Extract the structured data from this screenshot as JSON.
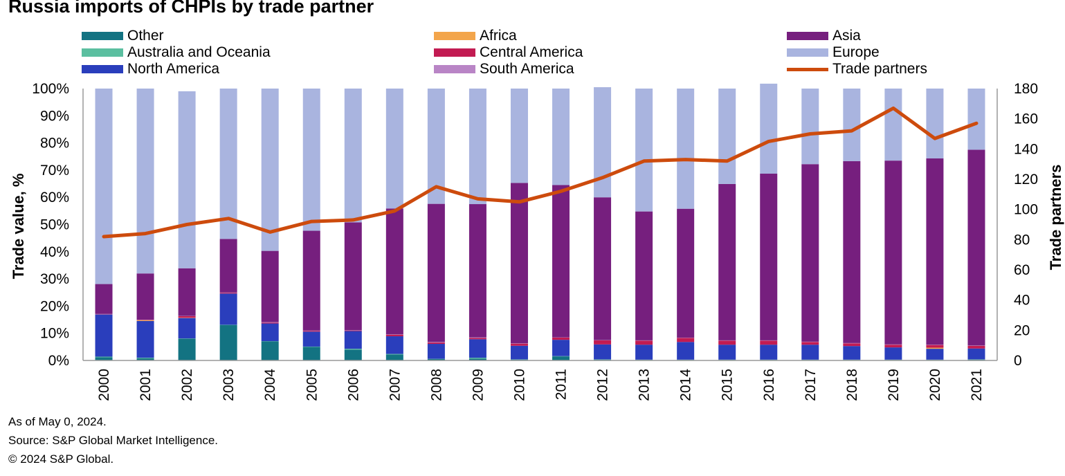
{
  "chart_data": {
    "type": "bar",
    "stacked": true,
    "title": "Russia imports of CHPIs by trade partner",
    "ylabel": "Trade value, %",
    "y2label": "Trade partners",
    "ylim": [
      0,
      100
    ],
    "y2lim": [
      0,
      180
    ],
    "yticks": [
      "0%",
      "10%",
      "20%",
      "30%",
      "40%",
      "50%",
      "60%",
      "70%",
      "80%",
      "90%",
      "100%"
    ],
    "y2ticks": [
      "0",
      "20",
      "40",
      "60",
      "80",
      "100",
      "120",
      "140",
      "160",
      "180"
    ],
    "categories": [
      "2000",
      "2001",
      "2002",
      "2003",
      "2004",
      "2005",
      "2006",
      "2007",
      "2008",
      "2009",
      "2010",
      "2011",
      "2012",
      "2013",
      "2014",
      "2015",
      "2016",
      "2017",
      "2018",
      "2019",
      "2020",
      "2021"
    ],
    "series": [
      {
        "name": "Other",
        "color": "#137382",
        "values": [
          1.2,
          0.8,
          8.0,
          13.0,
          7.0,
          5.0,
          4.0,
          2.2,
          0.5,
          0.7,
          0.3,
          1.5,
          0.3,
          0.2,
          0.2,
          0.2,
          0.2,
          0.2,
          0.2,
          0.2,
          0.2,
          0.3
        ]
      },
      {
        "name": "Australia and Oceania",
        "color": "#5bbfa0",
        "values": [
          0.2,
          0.2,
          0.1,
          0.1,
          0.1,
          0.1,
          0.3,
          0.2,
          0.1,
          0.3,
          0.1,
          0.1,
          0.1,
          0.1,
          0.1,
          0.1,
          0.1,
          0.1,
          0.1,
          0.1,
          0.1,
          0.1
        ]
      },
      {
        "name": "North America",
        "color": "#2a3ebc",
        "values": [
          15.5,
          13.5,
          7.5,
          11.5,
          6.5,
          5.5,
          6.5,
          6.5,
          5.5,
          6.8,
          5.0,
          6.0,
          5.5,
          5.5,
          6.5,
          5.5,
          5.5,
          5.5,
          5.0,
          4.5,
          4.0,
          4.0
        ]
      },
      {
        "name": "Africa",
        "color": "#f3a54b",
        "values": [
          0.0,
          0.3,
          0.1,
          0.0,
          0.0,
          0.0,
          0.0,
          0.0,
          0.0,
          0.0,
          0.0,
          0.0,
          0.0,
          0.0,
          0.0,
          0.0,
          0.0,
          0.0,
          0.0,
          0.0,
          0.4,
          0.0
        ]
      },
      {
        "name": "Central America",
        "color": "#c21b52",
        "values": [
          0.1,
          0.1,
          0.6,
          0.3,
          0.3,
          0.3,
          0.2,
          0.6,
          0.5,
          0.5,
          0.8,
          0.8,
          1.5,
          1.5,
          1.5,
          1.5,
          1.5,
          1.0,
          1.0,
          1.0,
          1.0,
          1.0
        ]
      },
      {
        "name": "South America",
        "color": "#b985c6",
        "values": [
          0.1,
          0.1,
          0.1,
          0.1,
          0.2,
          0.1,
          0.1,
          0.1,
          0.2,
          0.2,
          0.1,
          0.1,
          0.1,
          0.1,
          0.1,
          0.1,
          0.1,
          0.1,
          0.1,
          0.1,
          0.1,
          0.1
        ]
      },
      {
        "name": "Asia",
        "color": "#761f7e",
        "values": [
          11.0,
          17.0,
          17.5,
          19.7,
          26.2,
          36.7,
          39.7,
          46.3,
          50.8,
          49.0,
          59.0,
          56.0,
          52.5,
          47.4,
          47.4,
          57.5,
          61.3,
          65.3,
          66.9,
          67.6,
          68.5,
          72.0
        ]
      },
      {
        "name": "Europe",
        "color": "#a9b4df",
        "values": [
          71.9,
          68.0,
          65.1,
          55.3,
          59.7,
          52.3,
          49.2,
          44.1,
          42.4,
          42.5,
          34.7,
          35.5,
          40.5,
          45.2,
          44.2,
          35.1,
          33.1,
          27.8,
          26.7,
          26.5,
          25.7,
          22.5
        ]
      }
    ],
    "line": {
      "name": "Trade partners",
      "color": "#cd4b0d",
      "axis": "right",
      "values": [
        82,
        84,
        90,
        94,
        85,
        92,
        93,
        99,
        115,
        107,
        105,
        112,
        121,
        132,
        133,
        132,
        145,
        150,
        152,
        167,
        147,
        157
      ]
    },
    "legend_order": [
      "Other",
      "Africa",
      "Asia",
      "Australia and Oceania",
      "Central America",
      "Europe",
      "North America",
      "South America",
      "Trade partners"
    ],
    "legend_position": "top"
  },
  "footnotes": {
    "date": "As of May 0, 2024.",
    "source": "Source: S&P Global Market Intelligence.",
    "copyright": "© 2024 S&P Global."
  }
}
